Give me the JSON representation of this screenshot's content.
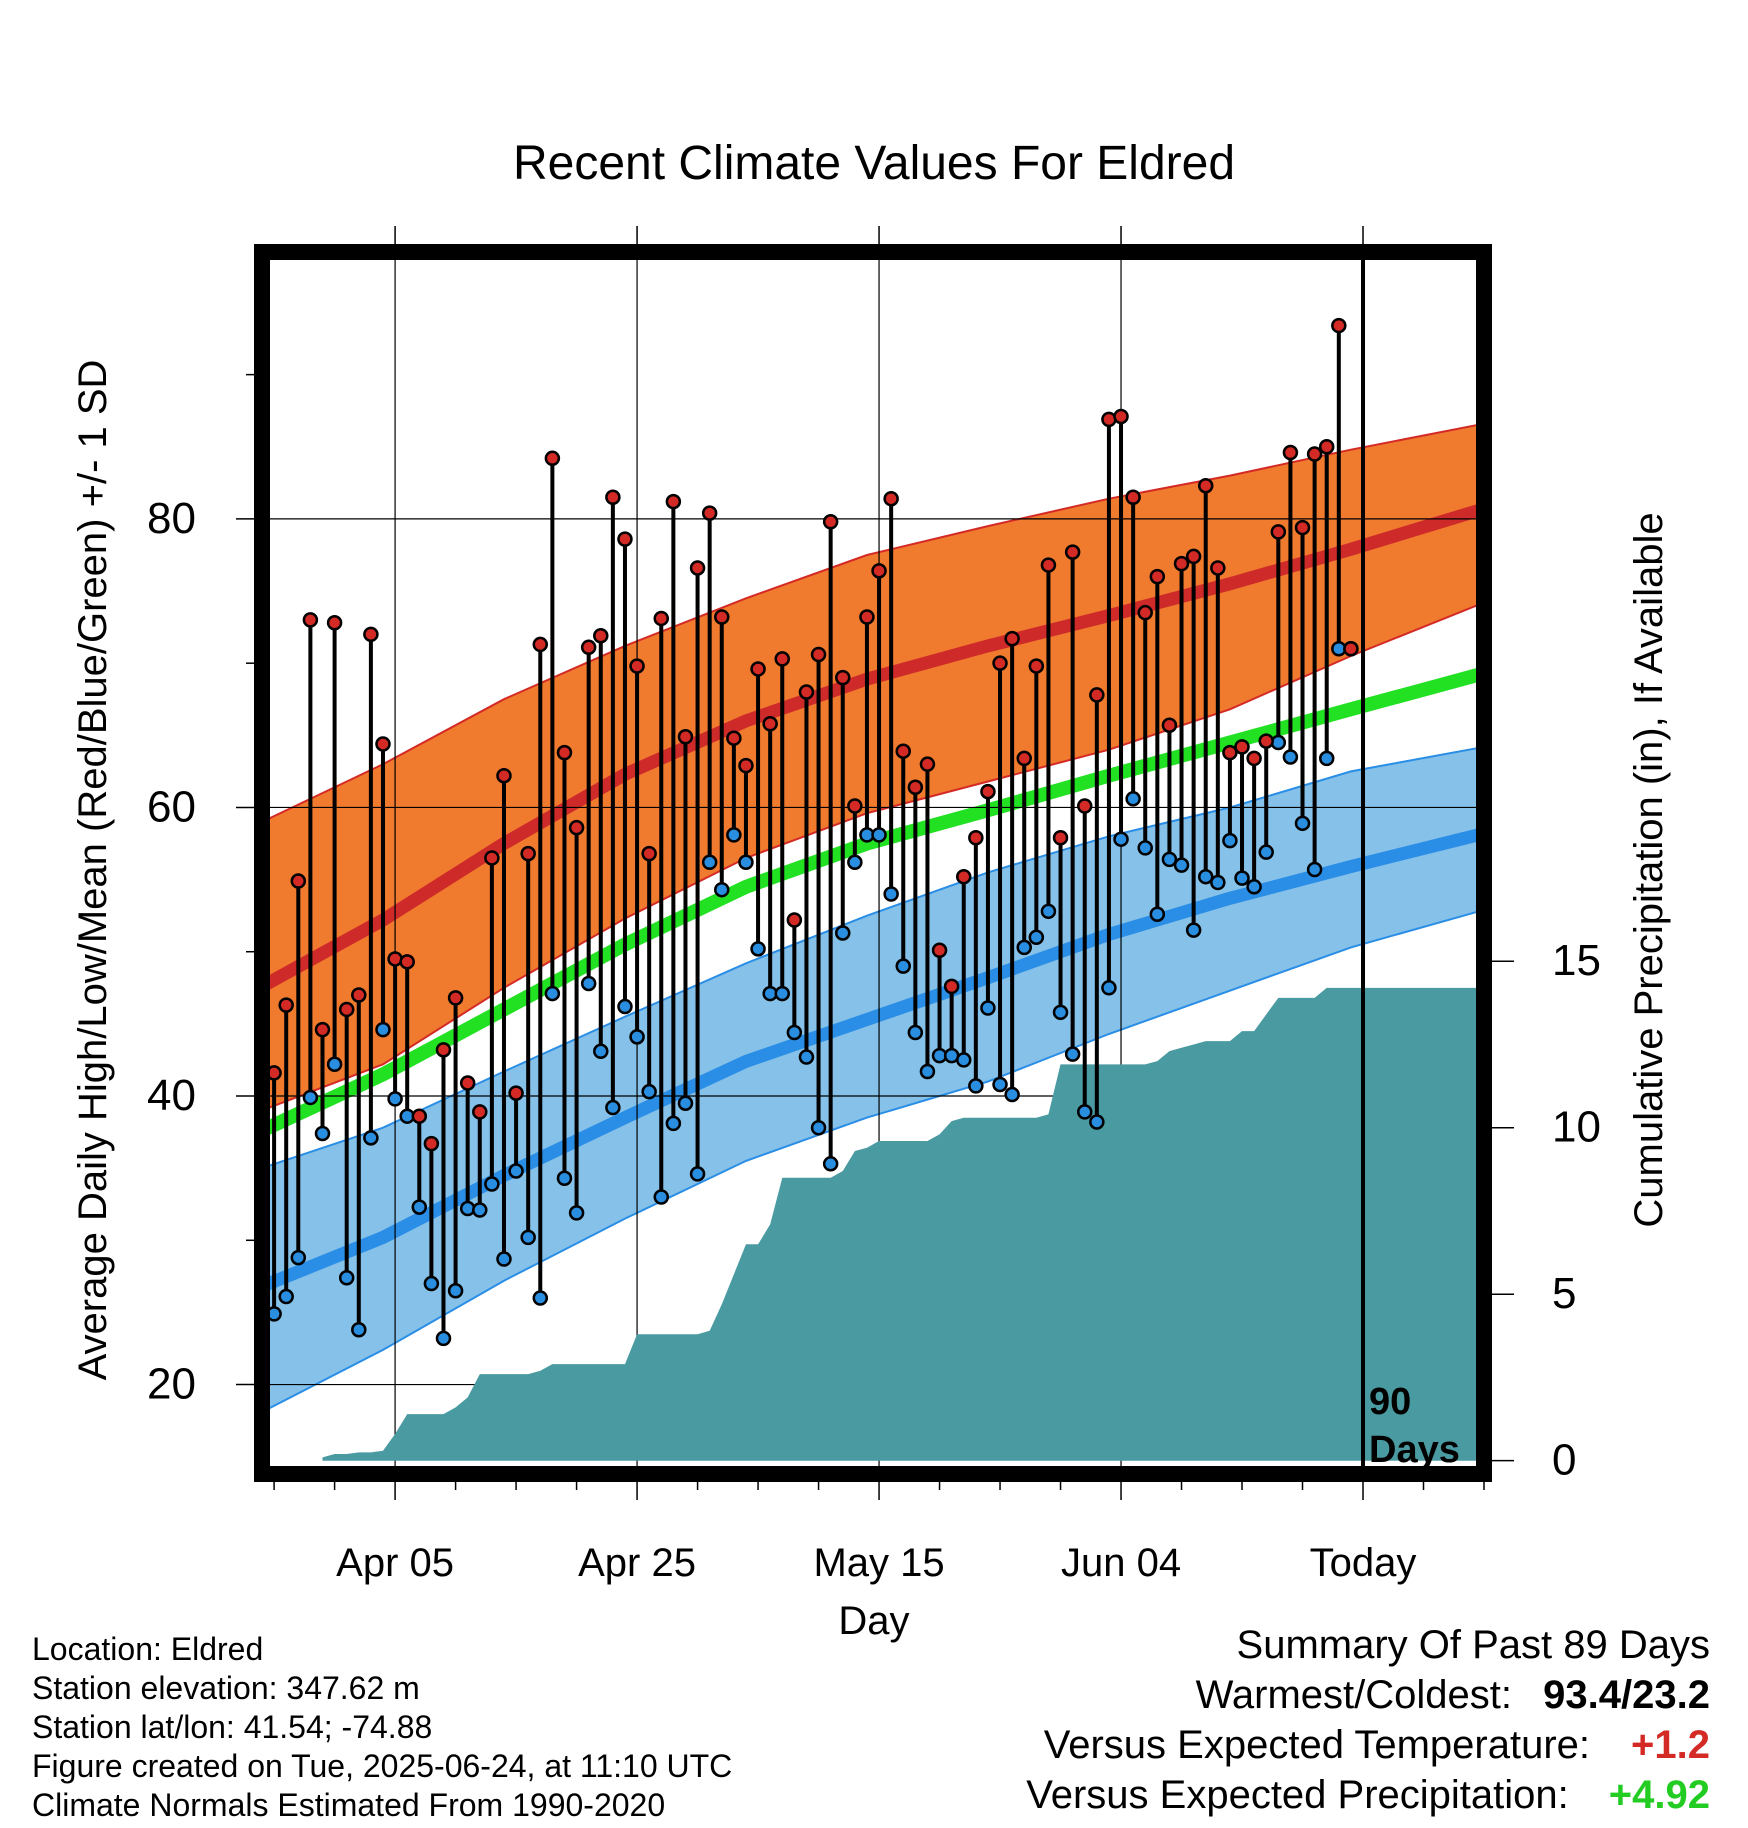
{
  "chart_data": {
    "type": "line",
    "title": "Recent Climate Values For Eldred",
    "xlabel": "Day",
    "ylabel": "Average Daily High/Low/Mean (Red/Blue/Green) +/- 1 SD",
    "y2label": "Cumulative Precipitation (in), If Available",
    "x_ticks": [
      "Apr 05",
      "Apr 25",
      "May 15",
      "Jun 04",
      "Today"
    ],
    "x_tick_days": [
      10,
      30,
      50,
      70,
      90
    ],
    "xlim": [
      -1,
      100
    ],
    "ylim": [
      13.8,
      98.5
    ],
    "y_ticks": [
      "20",
      "40",
      "60",
      "80"
    ],
    "y2lim": [
      -0.4,
      36.3
    ],
    "y2_ticks": [
      "0",
      "5",
      "10",
      "15"
    ],
    "grid": true,
    "today_marker": "90\nDays",
    "normals": {
      "days": [
        -1,
        9,
        19,
        29,
        39,
        49,
        59,
        69,
        79,
        89,
        100
      ],
      "high_mean": [
        47.6,
        52.2,
        57.5,
        62.3,
        66.0,
        68.9,
        71.2,
        73.3,
        75.5,
        77.9,
        80.7
      ],
      "high_upper": [
        59.0,
        63.0,
        67.5,
        71.2,
        74.5,
        77.5,
        79.5,
        81.4,
        83.0,
        84.8,
        86.6
      ],
      "high_lower": [
        39.0,
        42.2,
        47.5,
        52.3,
        56.5,
        59.6,
        61.8,
        64.0,
        66.8,
        70.5,
        74.2
      ],
      "mean_mean": [
        37.6,
        41.5,
        46.0,
        50.5,
        54.5,
        57.5,
        59.8,
        62.2,
        64.5,
        66.8,
        69.3
      ],
      "low_mean": [
        26.8,
        30.2,
        34.5,
        38.5,
        42.4,
        45.3,
        48.2,
        51.2,
        53.7,
        55.9,
        58.2
      ],
      "low_upper": [
        35.0,
        37.8,
        41.7,
        45.5,
        49.2,
        52.5,
        55.5,
        58.0,
        60.0,
        62.5,
        64.2
      ],
      "low_lower": [
        18.1,
        22.4,
        27.2,
        31.5,
        35.5,
        38.5,
        41.0,
        44.3,
        47.3,
        50.3,
        52.9
      ]
    },
    "series": [
      {
        "name": "High",
        "color": "#d42a26",
        "x": [
          0,
          1,
          2,
          3,
          4,
          5,
          6,
          7,
          8,
          9,
          10,
          11,
          12,
          13,
          14,
          15,
          16,
          17,
          18,
          19,
          20,
          21,
          22,
          23,
          24,
          25,
          26,
          27,
          28,
          29,
          30,
          31,
          32,
          33,
          34,
          35,
          36,
          37,
          38,
          39,
          40,
          41,
          42,
          43,
          44,
          45,
          46,
          47,
          48,
          49,
          50,
          51,
          52,
          53,
          54,
          55,
          56,
          57,
          58,
          59,
          60,
          61,
          62,
          63,
          64,
          65,
          66,
          67,
          68,
          69,
          70,
          71,
          72,
          73,
          74,
          75,
          76,
          77,
          78,
          79,
          80,
          81,
          82,
          83,
          84,
          85,
          86,
          87,
          88,
          89
        ],
        "values": [
          41.6,
          46.3,
          54.9,
          73.0,
          44.6,
          72.8,
          46.0,
          47.0,
          72.0,
          64.4,
          49.5,
          49.3,
          38.6,
          36.7,
          43.2,
          46.8,
          40.9,
          38.9,
          56.5,
          62.2,
          40.2,
          56.8,
          71.3,
          84.2,
          63.8,
          58.6,
          71.1,
          71.9,
          81.5,
          78.6,
          69.8,
          56.8,
          73.1,
          81.2,
          64.9,
          76.6,
          80.4,
          73.2,
          64.8,
          62.9,
          69.6,
          65.8,
          70.3,
          52.2,
          68.0,
          70.6,
          79.8,
          69.0,
          60.1,
          73.2,
          76.4,
          81.4,
          63.9,
          61.4,
          63.0,
          50.1,
          47.6,
          55.2,
          57.9,
          61.1,
          70.0,
          71.7,
          63.4,
          69.8,
          76.8,
          57.9,
          77.7,
          60.1,
          67.8,
          86.9,
          87.1,
          81.5,
          73.5,
          76.0,
          65.7,
          76.9,
          77.4,
          82.3,
          76.6,
          63.8,
          64.2,
          63.4,
          64.6,
          79.1,
          84.6,
          79.4,
          84.5,
          85.0,
          93.4,
          71.0
        ]
      },
      {
        "name": "Low",
        "color": "#2a8ee0",
        "x": [
          0,
          1,
          2,
          3,
          4,
          5,
          6,
          7,
          8,
          9,
          10,
          11,
          12,
          13,
          14,
          15,
          16,
          17,
          18,
          19,
          20,
          21,
          22,
          23,
          24,
          25,
          26,
          27,
          28,
          29,
          30,
          31,
          32,
          33,
          34,
          35,
          36,
          37,
          38,
          39,
          40,
          41,
          42,
          43,
          44,
          45,
          46,
          47,
          48,
          49,
          50,
          51,
          52,
          53,
          54,
          55,
          56,
          57,
          58,
          59,
          60,
          61,
          62,
          63,
          64,
          65,
          66,
          67,
          68,
          69,
          70,
          71,
          72,
          73,
          74,
          75,
          76,
          77,
          78,
          79,
          80,
          81,
          82,
          83,
          84,
          85,
          86,
          87,
          88,
          89
        ],
        "values": [
          24.9,
          26.1,
          28.8,
          39.9,
          37.4,
          42.2,
          27.4,
          23.8,
          37.1,
          44.6,
          39.8,
          38.6,
          32.3,
          27.0,
          23.2,
          26.5,
          32.2,
          32.1,
          33.9,
          28.7,
          34.8,
          30.2,
          26.0,
          47.1,
          34.3,
          31.9,
          47.8,
          43.1,
          39.2,
          46.2,
          44.1,
          40.3,
          33.0,
          38.1,
          39.5,
          34.6,
          56.2,
          54.3,
          58.1,
          56.2,
          50.2,
          47.1,
          47.1,
          44.4,
          42.7,
          37.8,
          35.3,
          51.3,
          56.2,
          58.1,
          58.1,
          54.0,
          49.0,
          44.4,
          41.7,
          42.8,
          42.8,
          42.5,
          40.7,
          46.1,
          40.8,
          40.1,
          50.3,
          51.0,
          52.8,
          45.8,
          42.9,
          38.9,
          38.2,
          47.5,
          57.8,
          60.6,
          57.2,
          52.6,
          56.4,
          56.0,
          51.5,
          55.2,
          54.8,
          57.7,
          55.1,
          54.5,
          56.9,
          64.5,
          63.5,
          58.9,
          55.7,
          63.4,
          71.0,
          71.0
        ]
      }
    ],
    "precipitation_cumulative": {
      "x": [
        4,
        5,
        6,
        7,
        8,
        9,
        10,
        11,
        12,
        13,
        14,
        15,
        16,
        17,
        18,
        19,
        20,
        21,
        22,
        23,
        24,
        25,
        26,
        27,
        28,
        29,
        30,
        31,
        32,
        33,
        34,
        35,
        36,
        37,
        38,
        39,
        40,
        41,
        42,
        43,
        44,
        45,
        46,
        47,
        48,
        49,
        50,
        51,
        52,
        53,
        54,
        55,
        56,
        57,
        58,
        59,
        60,
        61,
        62,
        63,
        64,
        65,
        66,
        67,
        68,
        69,
        70,
        71,
        72,
        73,
        74,
        75,
        76,
        77,
        78,
        79,
        80,
        81,
        82,
        83,
        84,
        85,
        86,
        87,
        88,
        89,
        90,
        100
      ],
      "values": [
        0.1,
        0.2,
        0.2,
        0.25,
        0.25,
        0.3,
        0.8,
        1.4,
        1.4,
        1.4,
        1.4,
        1.6,
        1.9,
        2.6,
        2.6,
        2.6,
        2.6,
        2.6,
        2.7,
        2.9,
        2.9,
        2.9,
        2.9,
        2.9,
        2.9,
        2.9,
        3.8,
        3.8,
        3.8,
        3.8,
        3.8,
        3.8,
        3.9,
        4.7,
        5.6,
        6.5,
        6.5,
        7.1,
        8.5,
        8.5,
        8.5,
        8.5,
        8.5,
        8.7,
        9.3,
        9.4,
        9.6,
        9.6,
        9.6,
        9.6,
        9.6,
        9.8,
        10.2,
        10.3,
        10.3,
        10.3,
        10.3,
        10.3,
        10.3,
        10.3,
        10.4,
        11.9,
        11.9,
        11.9,
        11.9,
        11.9,
        11.9,
        11.9,
        11.9,
        12.0,
        12.3,
        12.4,
        12.5,
        12.6,
        12.6,
        12.6,
        12.9,
        12.9,
        13.4,
        13.9,
        13.9,
        13.9,
        13.9,
        14.2,
        14.2,
        14.2,
        14.2,
        14.2
      ]
    }
  },
  "info": {
    "location": "Location: Eldred",
    "elevation": "Station elevation: 347.62 m",
    "latlon": "Station lat/lon: 41.54; -74.88",
    "created": "Figure created on Tue, 2025-06-24, at 11:10 UTC",
    "normals": "Climate Normals Estimated From 1990-2020"
  },
  "summary": {
    "title": "Summary Of Past 89 Days",
    "warmest_label": "Warmest/Coldest:",
    "warmest_value": "93.4/23.2",
    "temp_label": "Versus Expected Temperature:",
    "temp_value": "+1.2",
    "temp_color": "#d42a26",
    "precip_label": "Versus Expected Precipitation:",
    "precip_value": "+4.92",
    "precip_color": "#22cc22"
  },
  "colors": {
    "high_band": "#f07a2e",
    "high_mean": "#cf2a2a",
    "low_band": "#85c1e8",
    "low_mean": "#2a8ee6",
    "mean_line": "#22e022",
    "precip_fill": "#4a9aa2"
  }
}
